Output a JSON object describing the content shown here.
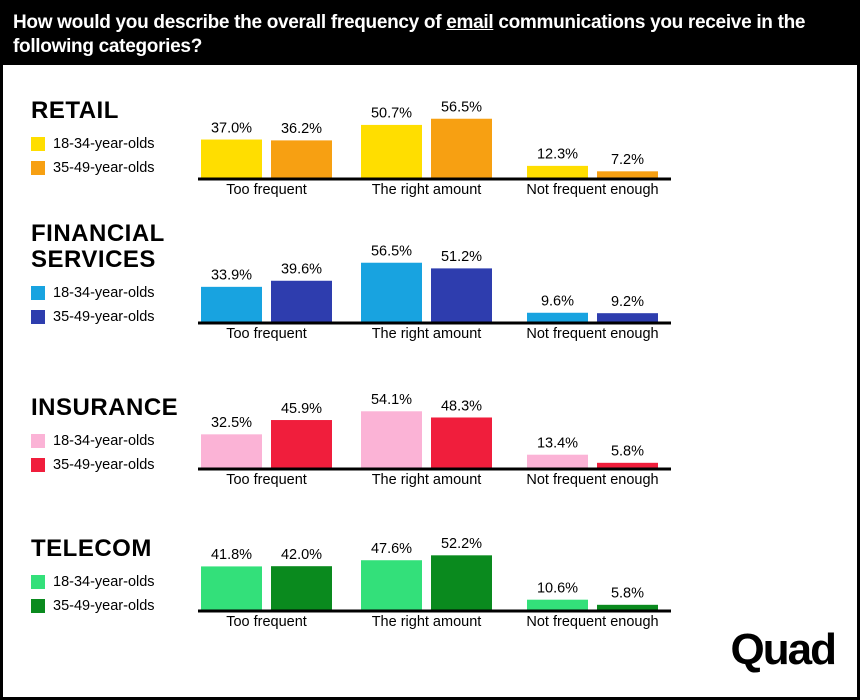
{
  "header": {
    "title": [
      "How would you describe the overall frequency of ",
      "email",
      " communications you receive in the following categories?"
    ]
  },
  "logo": "Quad",
  "chart_data": [
    {
      "type": "bar",
      "title": "RETAIL",
      "categories": [
        "Too frequent",
        "The right amount",
        "Not frequent enough"
      ],
      "ylim": [
        0,
        60
      ],
      "series": [
        {
          "name": "18-34-year-olds",
          "color": "#FFDE00",
          "values": [
            37.0,
            50.7,
            12.3
          ],
          "value_labels": [
            "37.0%",
            "50.7%",
            "12.3%"
          ]
        },
        {
          "name": "35-49-year-olds",
          "color": "#F7A012",
          "values": [
            36.2,
            56.5,
            7.2
          ],
          "value_labels": [
            "36.2%",
            "56.5%",
            "7.2%"
          ]
        }
      ]
    },
    {
      "type": "bar",
      "title": "FINANCIAL SERVICES",
      "categories": [
        "Too frequent",
        "The right amount",
        "Not frequent enough"
      ],
      "ylim": [
        0,
        60
      ],
      "series": [
        {
          "name": "18-34-year-olds",
          "color": "#18A3E0",
          "values": [
            33.9,
            56.5,
            9.6
          ],
          "value_labels": [
            "33.9%",
            "56.5%",
            "9.6%"
          ]
        },
        {
          "name": "35-49-year-olds",
          "color": "#2E3DAE",
          "values": [
            39.6,
            51.2,
            9.2
          ],
          "value_labels": [
            "39.6%",
            "51.2%",
            "9.2%"
          ]
        }
      ]
    },
    {
      "type": "bar",
      "title": "INSURANCE",
      "categories": [
        "Too frequent",
        "The right amount",
        "Not frequent enough"
      ],
      "ylim": [
        0,
        60
      ],
      "series": [
        {
          "name": "18-34-year-olds",
          "color": "#FBB3D6",
          "values": [
            32.5,
            54.1,
            13.4
          ],
          "value_labels": [
            "32.5%",
            "54.1%",
            "13.4%"
          ]
        },
        {
          "name": "35-49-year-olds",
          "color": "#F01E3C",
          "values": [
            45.9,
            48.3,
            5.8
          ],
          "value_labels": [
            "45.9%",
            "48.3%",
            "5.8%"
          ]
        }
      ]
    },
    {
      "type": "bar",
      "title": "TELECOM",
      "categories": [
        "Too frequent",
        "The right amount",
        "Not frequent enough"
      ],
      "ylim": [
        0,
        60
      ],
      "series": [
        {
          "name": "18-34-year-olds",
          "color": "#33E07A",
          "values": [
            41.8,
            47.6,
            10.6
          ],
          "value_labels": [
            "41.8%",
            "47.6%",
            "10.6%"
          ]
        },
        {
          "name": "35-49-year-olds",
          "color": "#0A8A1E",
          "values": [
            42.0,
            52.2,
            5.8
          ],
          "value_labels": [
            "42.0%",
            "52.2%",
            "5.8%"
          ]
        }
      ]
    }
  ]
}
